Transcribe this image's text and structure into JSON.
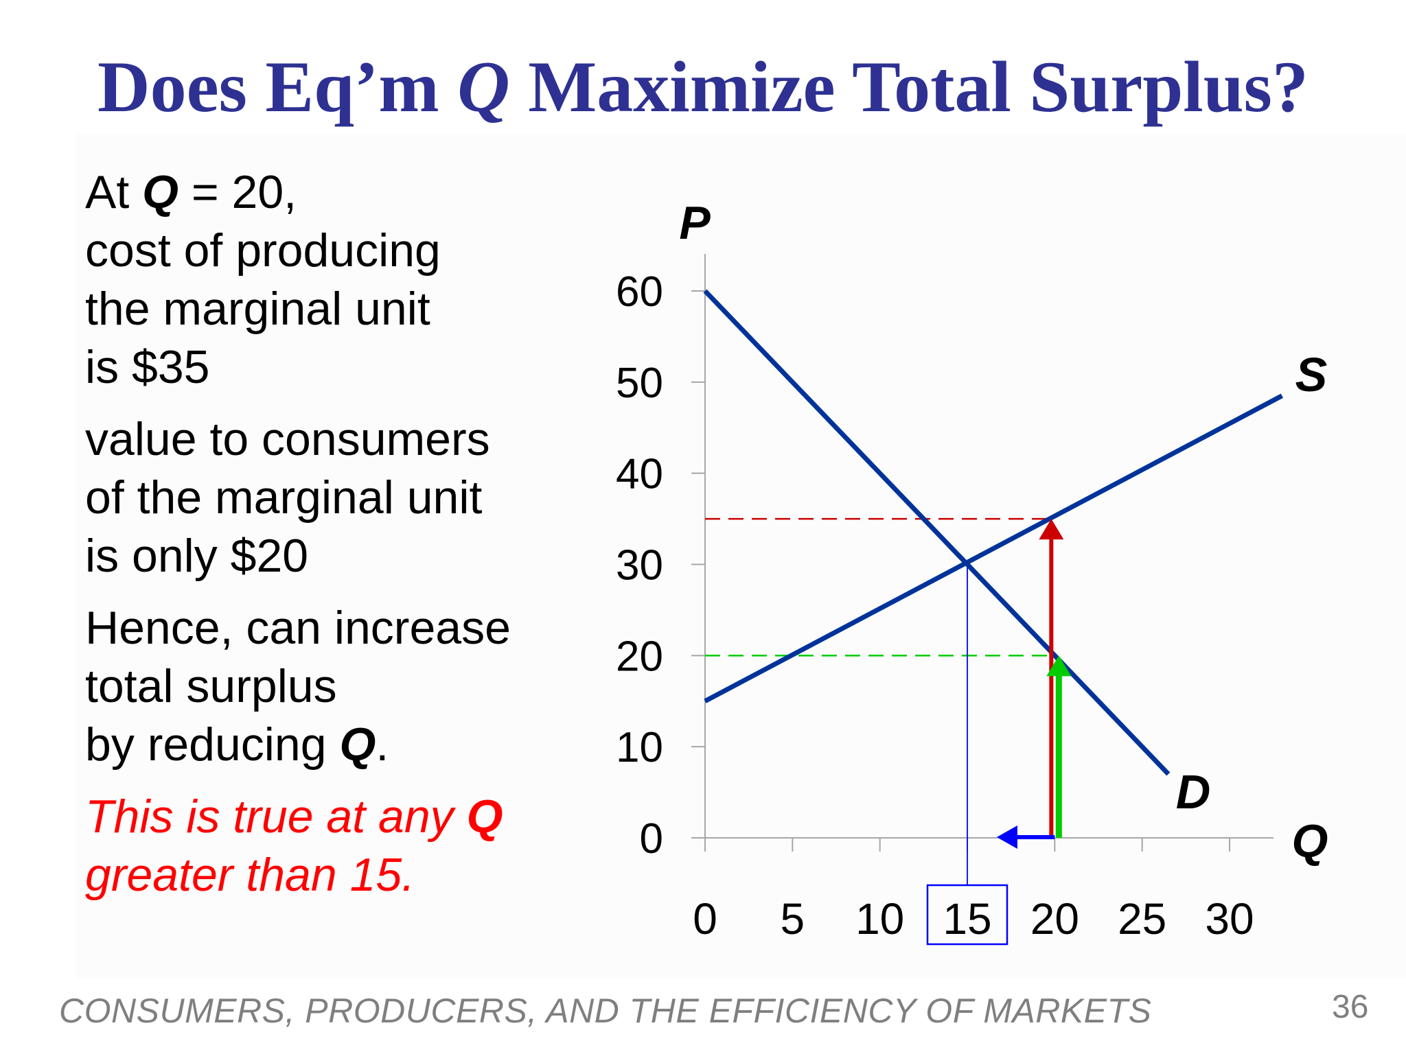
{
  "slide": {
    "title_part1": "Does Eq’m ",
    "title_q": "Q",
    "title_part2": " Maximize Total Surplus?",
    "footer": "CONSUMERS, PRODUCERS, AND THE EFFICIENCY OF MARKETS",
    "page_number": "36"
  },
  "text": {
    "p1_line1_prefix": "At ",
    "p1_line1_q": "Q",
    "p1_line1_suffix": " = 20,",
    "p1_line2": "cost of producing",
    "p1_line3": "the marginal unit",
    "p1_line4": "is $35",
    "p2_line1": "value to consumers",
    "p2_line2": "of the marginal unit",
    "p2_line3": "is only $20",
    "p3_line1": "Hence, can increase",
    "p3_line2": "total surplus",
    "p3_line3_prefix": "by reducing ",
    "p3_line3_q": "Q",
    "p3_line3_suffix": ".",
    "p4_line1_prefix": "This is true at any ",
    "p4_line1_q": "Q",
    "p4_line2": "greater than 15."
  },
  "colors": {
    "title": "#2e3192",
    "curve": "#003399",
    "cost_arrow": "#cc0000",
    "value_arrow": "#00cc00",
    "reduce_arrow": "#0000ff",
    "highlight_box": "#0000ff",
    "red_text": "#ff0000"
  },
  "chart_data": {
    "type": "line",
    "xlabel": "Q",
    "ylabel": "P",
    "xlim": [
      0,
      30
    ],
    "ylim": [
      0,
      60
    ],
    "x_ticks": [
      "0",
      "5",
      "10",
      "15",
      "20",
      "25",
      "30"
    ],
    "y_ticks": [
      "0",
      "10",
      "20",
      "30",
      "40",
      "50",
      "60"
    ],
    "highlighted_x_tick": "15",
    "series": [
      {
        "name": "S",
        "x": [
          0,
          33
        ],
        "y": [
          15,
          48.5
        ]
      },
      {
        "name": "D",
        "x": [
          0,
          26.5
        ],
        "y": [
          60,
          7
        ]
      }
    ],
    "equilibrium": {
      "q": 15,
      "p": 30
    },
    "reference_lines": [
      {
        "value": 35,
        "label": "cost of marginal unit"
      },
      {
        "value": 20,
        "label": "value of marginal unit"
      }
    ],
    "arrows": [
      {
        "name": "cost",
        "x": 20,
        "from": 0,
        "to": 35
      },
      {
        "name": "value",
        "x": 20,
        "from": 0,
        "to": 20
      },
      {
        "name": "reduce-Q",
        "y": 0,
        "from": 20,
        "to": 17
      }
    ],
    "grid": false
  }
}
